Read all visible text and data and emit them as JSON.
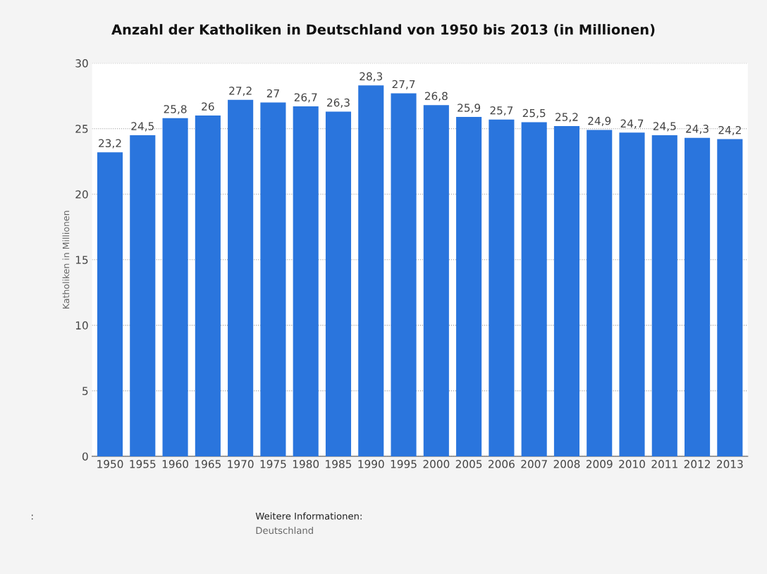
{
  "chart_data": {
    "type": "bar",
    "title": "Anzahl der Katholiken in Deutschland von 1950 bis 2013 (in Millionen)",
    "ylabel": "Katholiken in Millionen",
    "categories": [
      "1950",
      "1955",
      "1960",
      "1965",
      "1970",
      "1975",
      "1980",
      "1985",
      "1990",
      "1995",
      "2000",
      "2005",
      "2006",
      "2007",
      "2008",
      "2009",
      "2010",
      "2011",
      "2012",
      "2013"
    ],
    "values": [
      23.2,
      24.5,
      25.8,
      26,
      27.2,
      27,
      26.7,
      26.3,
      28.3,
      27.7,
      26.8,
      25.9,
      25.7,
      25.5,
      25.2,
      24.9,
      24.7,
      24.5,
      24.3,
      24.2
    ],
    "value_labels": [
      "23,2",
      "24,5",
      "25,8",
      "26",
      "27,2",
      "27",
      "26,7",
      "26,3",
      "28,3",
      "27,7",
      "26,8",
      "25,9",
      "25,7",
      "25,5",
      "25,2",
      "24,9",
      "24,7",
      "24,5",
      "24,3",
      "24,2"
    ],
    "color": "#2a75dd",
    "ylim": [
      0,
      30
    ],
    "yticks": [
      0,
      5,
      10,
      15,
      20,
      25,
      30
    ],
    "grid": "y",
    "legend": false,
    "annotations": [
      ":",
      "Weitere Informationen:",
      "Deutschland"
    ]
  }
}
